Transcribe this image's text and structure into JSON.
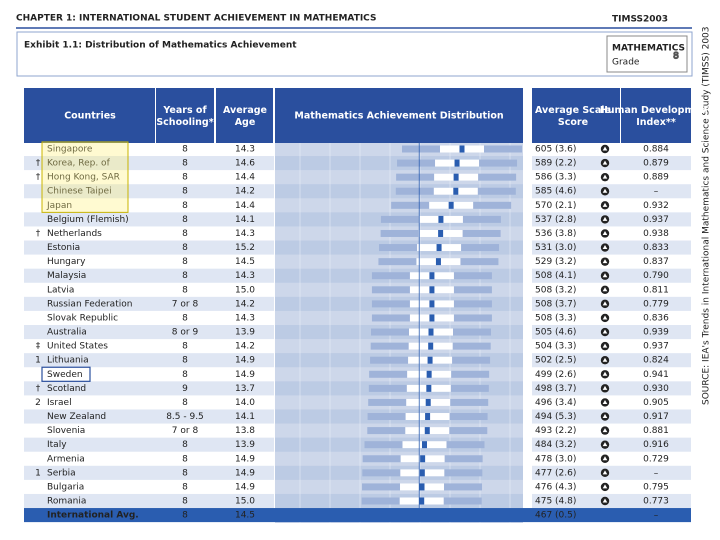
{
  "header": {
    "chapter": "CHAPTER 1: INTERNATIONAL STUDENT ACHIEVEMENT IN MATHEMATICS",
    "brand": "TIMSS2003",
    "exhibit": "Exhibit 1.1:  Distribution of Mathematics Achievement",
    "subject": "MATHEMATICS",
    "grade": "Grade",
    "grade_number": "8"
  },
  "source": "SOURCE: IEA's Trends in International Mathematics and Science Study (TIMSS) 2003",
  "table": {
    "columns": [
      "Countries",
      "Years of Schooling*",
      "Average Age",
      "Mathematics Achievement Distribution",
      "Average Scale Score",
      "Human Development Index**"
    ],
    "rows": [
      {
        "mark": "",
        "country": "Singapore",
        "years": "8",
        "age": "14.3",
        "score": 605,
        "se": "(3.6)",
        "hdi": "0.884"
      },
      {
        "mark": "†",
        "country": "Korea, Rep. of",
        "years": "8",
        "age": "14.6",
        "score": 589,
        "se": "(2.2)",
        "hdi": "0.879"
      },
      {
        "mark": "†",
        "country": "Hong Kong, SAR",
        "years": "8",
        "age": "14.4",
        "score": 586,
        "se": "(3.3)",
        "hdi": "0.889"
      },
      {
        "mark": "",
        "country": "Chinese Taipei",
        "years": "8",
        "age": "14.2",
        "score": 585,
        "se": "(4.6)",
        "hdi": "–"
      },
      {
        "mark": "",
        "country": "Japan",
        "years": "8",
        "age": "14.4",
        "score": 570,
        "se": "(2.1)",
        "hdi": "0.932"
      },
      {
        "mark": "",
        "country": "Belgium (Flemish)",
        "years": "8",
        "age": "14.1",
        "score": 537,
        "se": "(2.8)",
        "hdi": "0.937"
      },
      {
        "mark": "†",
        "country": "Netherlands",
        "years": "8",
        "age": "14.3",
        "score": 536,
        "se": "(3.8)",
        "hdi": "0.938"
      },
      {
        "mark": "",
        "country": "Estonia",
        "years": "8",
        "age": "15.2",
        "score": 531,
        "se": "(3.0)",
        "hdi": "0.833"
      },
      {
        "mark": "",
        "country": "Hungary",
        "years": "8",
        "age": "14.5",
        "score": 529,
        "se": "(3.2)",
        "hdi": "0.837"
      },
      {
        "mark": "",
        "country": "Malaysia",
        "years": "8",
        "age": "14.3",
        "score": 508,
        "se": "(4.1)",
        "hdi": "0.790"
      },
      {
        "mark": "",
        "country": "Latvia",
        "years": "8",
        "age": "15.0",
        "score": 508,
        "se": "(3.2)",
        "hdi": "0.811"
      },
      {
        "mark": "",
        "country": "Russian Federation",
        "years": "7 or 8",
        "age": "14.2",
        "score": 508,
        "se": "(3.7)",
        "hdi": "0.779"
      },
      {
        "mark": "",
        "country": "Slovak Republic",
        "years": "8",
        "age": "14.3",
        "score": 508,
        "se": "(3.3)",
        "hdi": "0.836"
      },
      {
        "mark": "",
        "country": "Australia",
        "years": "8 or 9",
        "age": "13.9",
        "score": 505,
        "se": "(4.6)",
        "hdi": "0.939"
      },
      {
        "mark": "‡",
        "country": "United States",
        "years": "8",
        "age": "14.2",
        "score": 504,
        "se": "(3.3)",
        "hdi": "0.937"
      },
      {
        "mark": "1",
        "country": "Lithuania",
        "years": "8",
        "age": "14.9",
        "score": 502,
        "se": "(2.5)",
        "hdi": "0.824"
      },
      {
        "mark": "",
        "country": "Sweden",
        "years": "8",
        "age": "14.9",
        "score": 499,
        "se": "(2.6)",
        "hdi": "0.941"
      },
      {
        "mark": "†",
        "country": "Scotland",
        "years": "9",
        "age": "13.7",
        "score": 498,
        "se": "(3.7)",
        "hdi": "0.930"
      },
      {
        "mark": "2",
        "country": "Israel",
        "years": "8",
        "age": "14.0",
        "score": 496,
        "se": "(3.4)",
        "hdi": "0.905"
      },
      {
        "mark": "",
        "country": "New Zealand",
        "years": "8.5 - 9.5",
        "age": "14.1",
        "score": 494,
        "se": "(5.3)",
        "hdi": "0.917"
      },
      {
        "mark": "",
        "country": "Slovenia",
        "years": "7 or 8",
        "age": "13.8",
        "score": 493,
        "se": "(2.2)",
        "hdi": "0.881"
      },
      {
        "mark": "",
        "country": "Italy",
        "years": "8",
        "age": "13.9",
        "score": 484,
        "se": "(3.2)",
        "hdi": "0.916"
      },
      {
        "mark": "",
        "country": "Armenia",
        "years": "8",
        "age": "14.9",
        "score": 478,
        "se": "(3.0)",
        "hdi": "0.729"
      },
      {
        "mark": "1",
        "country": "Serbia",
        "years": "8",
        "age": "14.9",
        "score": 477,
        "se": "(2.6)",
        "hdi": "–"
      },
      {
        "mark": "",
        "country": "Bulgaria",
        "years": "8",
        "age": "14.9",
        "score": 476,
        "se": "(4.3)",
        "hdi": "0.795"
      },
      {
        "mark": "",
        "country": "Romania",
        "years": "8",
        "age": "15.0",
        "score": 475,
        "se": "(4.8)",
        "hdi": "0.773"
      }
    ],
    "average": {
      "country": "International Avg.",
      "years": "8",
      "age": "14.5",
      "score": 467,
      "se": "(0.5)",
      "hdi": "–"
    }
  }
}
